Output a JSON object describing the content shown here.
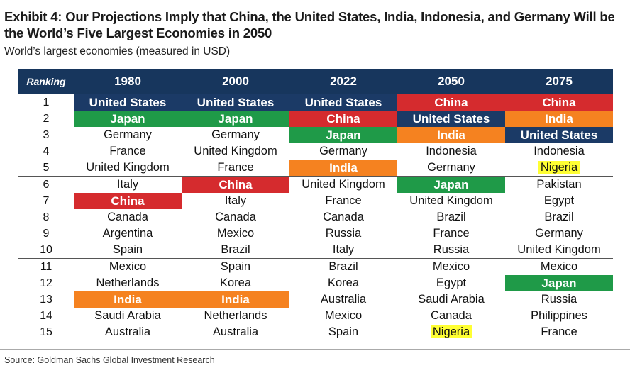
{
  "title": "Exhibit 4: Our Projections Imply that China, the United States, India, Indonesia, and Germany Will be the World’s Five Largest Economies in 2050",
  "subtitle": "World’s largest economies (measured in USD)",
  "source": "Source: Goldman Sachs Global Investment Research",
  "colors": {
    "header": "#17365d",
    "United States": "#1b3a66",
    "China": "#d52b2e",
    "Japan": "#1f9a48",
    "India": "#f58220",
    "Nigeria": "#ffff33"
  },
  "table": {
    "ranking_label": "Ranking",
    "years": [
      "1980",
      "2000",
      "2022",
      "2050",
      "2075"
    ],
    "ranks": [
      "1",
      "2",
      "3",
      "4",
      "5",
      "6",
      "7",
      "8",
      "9",
      "10",
      "11",
      "12",
      "13",
      "14",
      "15"
    ],
    "columns": [
      [
        "United States",
        "Japan",
        "Germany",
        "France",
        "United Kingdom",
        "Italy",
        "China",
        "Canada",
        "Argentina",
        "Spain",
        "Mexico",
        "Netherlands",
        "India",
        "Saudi Arabia",
        "Australia"
      ],
      [
        "United States",
        "Japan",
        "Germany",
        "United Kingdom",
        "France",
        "China",
        "Italy",
        "Canada",
        "Mexico",
        "Brazil",
        "Spain",
        "Korea",
        "India",
        "Netherlands",
        "Australia"
      ],
      [
        "United States",
        "China",
        "Japan",
        "Germany",
        "India",
        "United Kingdom",
        "France",
        "Canada",
        "Russia",
        "Italy",
        "Brazil",
        "Korea",
        "Australia",
        "Mexico",
        "Spain"
      ],
      [
        "China",
        "United States",
        "India",
        "Indonesia",
        "Germany",
        "Japan",
        "United Kingdom",
        "Brazil",
        "France",
        "Russia",
        "Mexico",
        "Egypt",
        "Saudi Arabia",
        "Canada",
        "Nigeria"
      ],
      [
        "China",
        "India",
        "United States",
        "Indonesia",
        "Nigeria",
        "Pakistan",
        "Egypt",
        "Brazil",
        "Germany",
        "United Kingdom",
        "Mexico",
        "Japan",
        "Russia",
        "Philippines",
        "France"
      ]
    ]
  }
}
